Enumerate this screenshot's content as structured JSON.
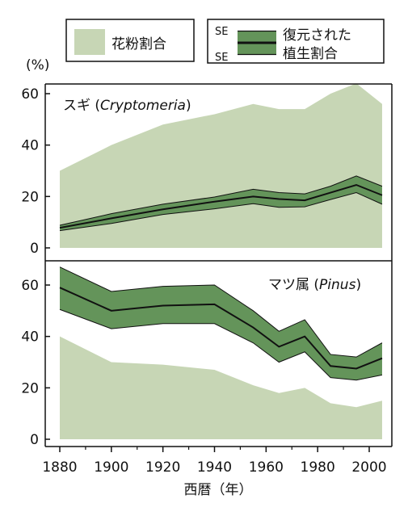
{
  "colors": {
    "pollen_fill": "#c7d6b5",
    "se_band": "#64945a",
    "line": "#111111",
    "axis": "#111111"
  },
  "legend": {
    "pollen_label": "花粉割合",
    "se_top": "SE",
    "se_bottom": "SE",
    "recon_line1": "復元された",
    "recon_line2": "植生割合"
  },
  "chart_data": [
    {
      "type": "area",
      "panel_label_prefix": "スギ (",
      "panel_label_italic": "Cryptomeria",
      "panel_label_suffix": ")",
      "ylabel": "(%)",
      "ylim": [
        0,
        60
      ],
      "yticks": [
        0,
        20,
        40,
        60
      ],
      "x": [
        1880,
        1900,
        1920,
        1940,
        1955,
        1965,
        1975,
        1985,
        1995,
        2005
      ],
      "series": [
        {
          "name": "花粉割合",
          "kind": "area",
          "values": [
            30,
            40,
            48,
            52,
            56,
            54,
            54,
            60,
            64,
            56
          ]
        },
        {
          "name": "復元された植生割合",
          "kind": "line",
          "values": [
            7.8,
            11.5,
            15,
            18,
            20,
            19,
            18.5,
            21.5,
            24.5,
            20.5
          ],
          "upper": [
            8.8,
            13.3,
            17.0,
            19.8,
            22.8,
            21.5,
            21.0,
            24.0,
            28.0,
            24.0
          ],
          "lower": [
            6.7,
            9.5,
            13.0,
            15.2,
            17.2,
            15.8,
            16.0,
            18.8,
            21.5,
            17.0
          ]
        }
      ]
    },
    {
      "type": "area",
      "panel_label_prefix": "マツ属 (",
      "panel_label_italic": "Pinus",
      "panel_label_suffix": ")",
      "ylim": [
        0,
        60
      ],
      "yticks": [
        0,
        20,
        40,
        60
      ],
      "x": [
        1880,
        1900,
        1920,
        1940,
        1955,
        1965,
        1975,
        1985,
        1995,
        2005
      ],
      "xticks": [
        1880,
        1900,
        1920,
        1940,
        1960,
        1980,
        2000
      ],
      "xlabel": "西暦（年）",
      "series": [
        {
          "name": "花粉割合",
          "kind": "area",
          "values": [
            40,
            30,
            29,
            27,
            21,
            18,
            20,
            14,
            12.5,
            15
          ]
        },
        {
          "name": "復元された植生割合",
          "kind": "line",
          "values": [
            59,
            50,
            52,
            52.5,
            43.5,
            36,
            40,
            28.5,
            27.5,
            31.5
          ],
          "upper": [
            67,
            57.5,
            59.5,
            60,
            50,
            42,
            46.5,
            33,
            32,
            37.5
          ],
          "lower": [
            50.5,
            43,
            45,
            45,
            37.5,
            30,
            34,
            24,
            23,
            25
          ]
        }
      ]
    }
  ]
}
